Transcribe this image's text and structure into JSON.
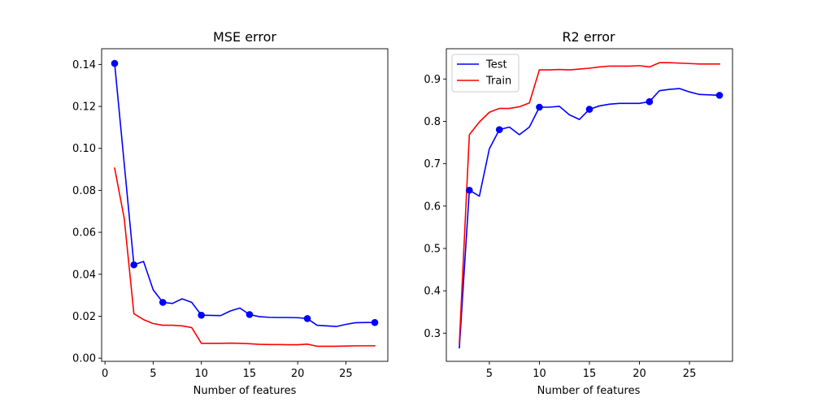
{
  "chart_data": [
    {
      "type": "line",
      "title": "MSE error",
      "xlabel": "Number of features",
      "ylabel": "",
      "xlim": [
        -0.35,
        29.35
      ],
      "ylim": [
        -0.0015,
        0.1475
      ],
      "xticks": [
        0,
        5,
        10,
        15,
        20,
        25
      ],
      "xtick_labels": [
        "0",
        "5",
        "10",
        "15",
        "20",
        "25"
      ],
      "yticks": [
        0.0,
        0.02,
        0.04,
        0.06,
        0.08,
        0.1,
        0.12,
        0.14
      ],
      "ytick_labels": [
        "0.00",
        "0.02",
        "0.04",
        "0.06",
        "0.08",
        "0.10",
        "0.12",
        "0.14"
      ],
      "grid": false,
      "series": [
        {
          "name": "Test",
          "color": "#0000ff",
          "x": [
            1,
            3,
            4,
            5,
            6,
            7,
            8,
            9,
            10,
            11,
            12,
            13,
            14,
            15,
            16,
            17,
            18,
            19,
            20,
            21,
            22,
            23,
            24,
            25,
            26,
            27,
            28
          ],
          "y": [
            0.1405,
            0.0445,
            0.0461,
            0.0326,
            0.0266,
            0.0261,
            0.0283,
            0.0266,
            0.0205,
            0.0204,
            0.0203,
            0.0225,
            0.0239,
            0.0208,
            0.0198,
            0.0195,
            0.0194,
            0.0194,
            0.0193,
            0.0189,
            0.0157,
            0.0154,
            0.0151,
            0.0161,
            0.0169,
            0.017,
            0.017
          ],
          "markers_x": [
            1,
            3,
            6,
            10,
            15,
            21,
            28
          ],
          "markers_y": [
            0.1405,
            0.0445,
            0.0266,
            0.0205,
            0.0208,
            0.0189,
            0.017
          ]
        },
        {
          "name": "Train",
          "color": "#ff0000",
          "x": [
            1,
            2,
            3,
            4,
            5,
            6,
            7,
            8,
            9,
            10,
            11,
            12,
            13,
            14,
            15,
            16,
            17,
            18,
            19,
            20,
            21,
            22,
            23,
            24,
            25,
            26,
            27,
            28
          ],
          "y": [
            0.0906,
            0.0665,
            0.0212,
            0.0184,
            0.0165,
            0.0157,
            0.0157,
            0.0154,
            0.0146,
            0.0071,
            0.0071,
            0.0071,
            0.0072,
            0.0071,
            0.0069,
            0.0066,
            0.0065,
            0.0065,
            0.0064,
            0.0064,
            0.0067,
            0.0057,
            0.0057,
            0.0057,
            0.0058,
            0.0059,
            0.0059,
            0.0059
          ]
        }
      ]
    },
    {
      "type": "line",
      "title": "R2 error",
      "xlabel": "Number of features",
      "ylabel": "",
      "xlim": [
        0.7,
        29.3
      ],
      "ylim": [
        0.2335,
        0.9715
      ],
      "xticks": [
        5,
        10,
        15,
        20,
        25
      ],
      "xtick_labels": [
        "5",
        "10",
        "15",
        "20",
        "25"
      ],
      "yticks": [
        0.3,
        0.4,
        0.5,
        0.6,
        0.7,
        0.8,
        0.9
      ],
      "ytick_labels": [
        "0.3",
        "0.4",
        "0.5",
        "0.6",
        "0.7",
        "0.8",
        "0.9"
      ],
      "grid": false,
      "legend": {
        "placement": "upper-left",
        "entries": [
          "Test",
          "Train"
        ]
      },
      "series": [
        {
          "name": "Test",
          "color": "#0000ff",
          "x": [
            2,
            3,
            4,
            5,
            6,
            7,
            8,
            9,
            10,
            11,
            12,
            13,
            14,
            15,
            16,
            17,
            18,
            19,
            20,
            21,
            22,
            23,
            24,
            25,
            26,
            27,
            28
          ],
          "y": [
            0.2655,
            0.6375,
            0.6235,
            0.7352,
            0.7805,
            0.7865,
            0.7685,
            0.7865,
            0.8335,
            0.8335,
            0.8355,
            0.8155,
            0.8045,
            0.8285,
            0.8365,
            0.8405,
            0.8425,
            0.8425,
            0.8425,
            0.8465,
            0.8725,
            0.8755,
            0.8775,
            0.8695,
            0.8635,
            0.8625,
            0.8615
          ],
          "markers_x": [
            3,
            6,
            10,
            15,
            21,
            28
          ],
          "markers_y": [
            0.6375,
            0.7805,
            0.8335,
            0.8285,
            0.8465,
            0.8615
          ]
        },
        {
          "name": "Train",
          "color": "#ff0000",
          "x": [
            2,
            3,
            4,
            5,
            6,
            7,
            8,
            9,
            10,
            11,
            12,
            13,
            14,
            15,
            16,
            17,
            18,
            19,
            20,
            21,
            22,
            23,
            24,
            25,
            26,
            27,
            28
          ],
          "y": [
            0.2765,
            0.7685,
            0.7985,
            0.8215,
            0.8305,
            0.8305,
            0.8345,
            0.8435,
            0.9215,
            0.9215,
            0.9225,
            0.9215,
            0.9235,
            0.9255,
            0.9285,
            0.9305,
            0.9305,
            0.9305,
            0.9315,
            0.9285,
            0.9385,
            0.9385,
            0.9375,
            0.9365,
            0.9355,
            0.9355,
            0.9355
          ]
        }
      ]
    }
  ]
}
